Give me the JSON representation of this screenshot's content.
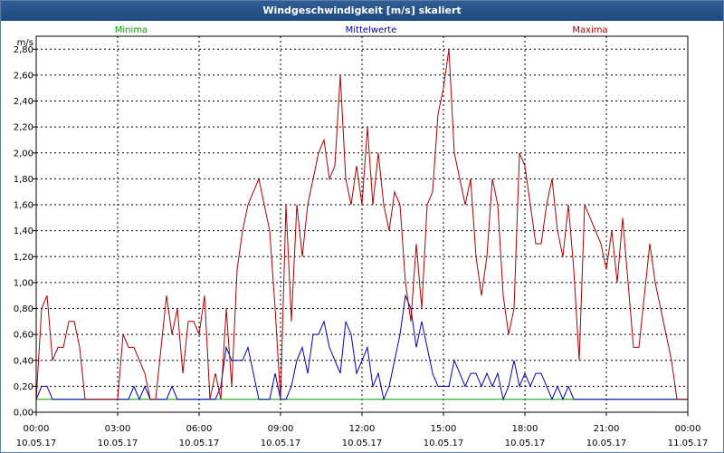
{
  "window": {
    "title": "Windgeschwindigkeit [m/s] skaliert"
  },
  "chart_data": {
    "type": "line",
    "title": "Windgeschwindigkeit [m/s] skaliert",
    "ylabel": "m/s",
    "ylim": [
      0,
      2.9
    ],
    "xlim": [
      0,
      24
    ],
    "grid": true,
    "y_ticks": [
      {
        "value": 0.0,
        "label": "0,00"
      },
      {
        "value": 0.2,
        "label": "0,20"
      },
      {
        "value": 0.4,
        "label": "0,40"
      },
      {
        "value": 0.6,
        "label": "0,60"
      },
      {
        "value": 0.8,
        "label": "0,80"
      },
      {
        "value": 1.0,
        "label": "1,00"
      },
      {
        "value": 1.2,
        "label": "1,20"
      },
      {
        "value": 1.4,
        "label": "1,40"
      },
      {
        "value": 1.6,
        "label": "1,60"
      },
      {
        "value": 1.8,
        "label": "1,80"
      },
      {
        "value": 2.0,
        "label": "2,00"
      },
      {
        "value": 2.2,
        "label": "2,20"
      },
      {
        "value": 2.4,
        "label": "2,40"
      },
      {
        "value": 2.6,
        "label": "2,60"
      },
      {
        "value": 2.8,
        "label": "2,80"
      }
    ],
    "x_ticks": [
      {
        "value": 0,
        "time": "00:00",
        "date": "10.05.17"
      },
      {
        "value": 3,
        "time": "03:00",
        "date": "10.05.17"
      },
      {
        "value": 6,
        "time": "06:00",
        "date": "10.05.17"
      },
      {
        "value": 9,
        "time": "09:00",
        "date": "10.05.17"
      },
      {
        "value": 12,
        "time": "12:00",
        "date": "10.05.17"
      },
      {
        "value": 15,
        "time": "15:00",
        "date": "10.05.17"
      },
      {
        "value": 18,
        "time": "18:00",
        "date": "10.05.17"
      },
      {
        "value": 21,
        "time": "21:00",
        "date": "10.05.17"
      },
      {
        "value": 24,
        "time": "00:00",
        "date": "11.05.17"
      }
    ],
    "series": [
      {
        "name": "Minima",
        "color": "#00a000",
        "points": [
          [
            0,
            0.1
          ],
          [
            24,
            0.1
          ]
        ]
      },
      {
        "name": "Mittelwerte",
        "color": "#0000c0",
        "points": [
          [
            0.0,
            0.1
          ],
          [
            0.2,
            0.2
          ],
          [
            0.4,
            0.2
          ],
          [
            0.6,
            0.1
          ],
          [
            1.5,
            0.1
          ],
          [
            3.0,
            0.1
          ],
          [
            3.4,
            0.1
          ],
          [
            3.6,
            0.2
          ],
          [
            3.8,
            0.1
          ],
          [
            4.0,
            0.2
          ],
          [
            4.2,
            0.1
          ],
          [
            4.8,
            0.1
          ],
          [
            5.0,
            0.2
          ],
          [
            5.2,
            0.1
          ],
          [
            5.6,
            0.1
          ],
          [
            6.0,
            0.1
          ],
          [
            6.4,
            0.1
          ],
          [
            6.6,
            0.1
          ],
          [
            6.8,
            0.2
          ],
          [
            7.0,
            0.5
          ],
          [
            7.2,
            0.4
          ],
          [
            7.4,
            0.4
          ],
          [
            7.6,
            0.4
          ],
          [
            7.8,
            0.5
          ],
          [
            8.0,
            0.3
          ],
          [
            8.2,
            0.1
          ],
          [
            8.6,
            0.1
          ],
          [
            8.8,
            0.3
          ],
          [
            9.0,
            0.1
          ],
          [
            9.2,
            0.1
          ],
          [
            9.4,
            0.2
          ],
          [
            9.6,
            0.4
          ],
          [
            9.8,
            0.5
          ],
          [
            10.0,
            0.3
          ],
          [
            10.2,
            0.6
          ],
          [
            10.4,
            0.6
          ],
          [
            10.6,
            0.7
          ],
          [
            10.8,
            0.5
          ],
          [
            11.0,
            0.4
          ],
          [
            11.2,
            0.3
          ],
          [
            11.4,
            0.7
          ],
          [
            11.6,
            0.6
          ],
          [
            11.8,
            0.3
          ],
          [
            12.0,
            0.4
          ],
          [
            12.2,
            0.5
          ],
          [
            12.4,
            0.2
          ],
          [
            12.6,
            0.3
          ],
          [
            12.8,
            0.1
          ],
          [
            13.0,
            0.2
          ],
          [
            13.2,
            0.4
          ],
          [
            13.4,
            0.6
          ],
          [
            13.6,
            0.9
          ],
          [
            13.8,
            0.8
          ],
          [
            14.0,
            0.5
          ],
          [
            14.2,
            0.7
          ],
          [
            14.4,
            0.5
          ],
          [
            14.6,
            0.3
          ],
          [
            14.8,
            0.2
          ],
          [
            15.0,
            0.2
          ],
          [
            15.2,
            0.2
          ],
          [
            15.4,
            0.4
          ],
          [
            15.6,
            0.3
          ],
          [
            15.8,
            0.2
          ],
          [
            16.0,
            0.3
          ],
          [
            16.2,
            0.3
          ],
          [
            16.4,
            0.2
          ],
          [
            16.6,
            0.3
          ],
          [
            16.8,
            0.2
          ],
          [
            17.0,
            0.3
          ],
          [
            17.2,
            0.1
          ],
          [
            17.4,
            0.2
          ],
          [
            17.6,
            0.4
          ],
          [
            17.8,
            0.2
          ],
          [
            18.0,
            0.3
          ],
          [
            18.2,
            0.2
          ],
          [
            18.4,
            0.3
          ],
          [
            18.6,
            0.3
          ],
          [
            18.8,
            0.2
          ],
          [
            19.0,
            0.1
          ],
          [
            19.2,
            0.2
          ],
          [
            19.4,
            0.1
          ],
          [
            19.6,
            0.2
          ],
          [
            19.8,
            0.1
          ],
          [
            20.0,
            0.1
          ],
          [
            24.0,
            0.1
          ]
        ]
      },
      {
        "name": "Maxima",
        "color": "#b00000",
        "points": [
          [
            0.0,
            0.1
          ],
          [
            0.2,
            0.8
          ],
          [
            0.4,
            0.9
          ],
          [
            0.6,
            0.4
          ],
          [
            0.8,
            0.5
          ],
          [
            1.0,
            0.5
          ],
          [
            1.2,
            0.7
          ],
          [
            1.4,
            0.7
          ],
          [
            1.6,
            0.5
          ],
          [
            1.8,
            0.1
          ],
          [
            2.4,
            0.1
          ],
          [
            2.6,
            0.1
          ],
          [
            2.8,
            0.1
          ],
          [
            3.0,
            0.1
          ],
          [
            3.2,
            0.6
          ],
          [
            3.4,
            0.5
          ],
          [
            3.6,
            0.5
          ],
          [
            3.8,
            0.4
          ],
          [
            4.0,
            0.3
          ],
          [
            4.2,
            0.1
          ],
          [
            4.4,
            0.1
          ],
          [
            4.6,
            0.5
          ],
          [
            4.8,
            0.9
          ],
          [
            5.0,
            0.6
          ],
          [
            5.2,
            0.8
          ],
          [
            5.4,
            0.3
          ],
          [
            5.6,
            0.7
          ],
          [
            5.8,
            0.7
          ],
          [
            6.0,
            0.6
          ],
          [
            6.2,
            0.9
          ],
          [
            6.4,
            0.1
          ],
          [
            6.6,
            0.3
          ],
          [
            6.8,
            0.1
          ],
          [
            7.0,
            0.8
          ],
          [
            7.2,
            0.2
          ],
          [
            7.4,
            1.1
          ],
          [
            7.6,
            1.4
          ],
          [
            7.8,
            1.6
          ],
          [
            8.0,
            1.7
          ],
          [
            8.2,
            1.8
          ],
          [
            8.4,
            1.6
          ],
          [
            8.6,
            1.4
          ],
          [
            8.8,
            0.8
          ],
          [
            9.0,
            0.1
          ],
          [
            9.2,
            1.6
          ],
          [
            9.4,
            0.7
          ],
          [
            9.6,
            1.6
          ],
          [
            9.8,
            1.2
          ],
          [
            10.0,
            1.6
          ],
          [
            10.2,
            1.8
          ],
          [
            10.4,
            2.0
          ],
          [
            10.6,
            2.1
          ],
          [
            10.8,
            1.8
          ],
          [
            11.0,
            1.9
          ],
          [
            11.2,
            2.6
          ],
          [
            11.4,
            1.8
          ],
          [
            11.6,
            1.6
          ],
          [
            11.8,
            1.9
          ],
          [
            12.0,
            1.6
          ],
          [
            12.2,
            2.2
          ],
          [
            12.4,
            1.6
          ],
          [
            12.6,
            2.0
          ],
          [
            12.8,
            1.6
          ],
          [
            13.0,
            1.4
          ],
          [
            13.2,
            1.7
          ],
          [
            13.4,
            1.6
          ],
          [
            13.6,
            1.0
          ],
          [
            13.8,
            0.7
          ],
          [
            14.0,
            1.3
          ],
          [
            14.2,
            0.8
          ],
          [
            14.4,
            1.6
          ],
          [
            14.6,
            1.7
          ],
          [
            14.8,
            2.3
          ],
          [
            15.0,
            2.5
          ],
          [
            15.2,
            2.8
          ],
          [
            15.4,
            2.0
          ],
          [
            15.6,
            1.8
          ],
          [
            15.8,
            1.6
          ],
          [
            16.0,
            1.8
          ],
          [
            16.2,
            1.2
          ],
          [
            16.4,
            0.9
          ],
          [
            16.6,
            1.2
          ],
          [
            16.8,
            1.8
          ],
          [
            17.0,
            1.6
          ],
          [
            17.2,
            0.9
          ],
          [
            17.4,
            0.6
          ],
          [
            17.6,
            0.8
          ],
          [
            17.8,
            2.0
          ],
          [
            18.0,
            1.9
          ],
          [
            18.2,
            1.6
          ],
          [
            18.4,
            1.3
          ],
          [
            18.6,
            1.3
          ],
          [
            18.8,
            1.6
          ],
          [
            19.0,
            1.8
          ],
          [
            19.2,
            1.4
          ],
          [
            19.4,
            1.2
          ],
          [
            19.6,
            1.6
          ],
          [
            19.8,
            1.1
          ],
          [
            20.0,
            0.4
          ],
          [
            20.2,
            1.6
          ],
          [
            20.4,
            1.5
          ],
          [
            20.6,
            1.4
          ],
          [
            20.8,
            1.3
          ],
          [
            21.0,
            1.1
          ],
          [
            21.2,
            1.4
          ],
          [
            21.4,
            1.0
          ],
          [
            21.6,
            1.5
          ],
          [
            21.8,
            1.0
          ],
          [
            22.0,
            0.5
          ],
          [
            22.2,
            0.5
          ],
          [
            22.4,
            0.9
          ],
          [
            22.6,
            1.3
          ],
          [
            22.8,
            1.0
          ],
          [
            23.0,
            0.8
          ],
          [
            23.2,
            0.6
          ],
          [
            23.4,
            0.4
          ],
          [
            23.6,
            0.1
          ],
          [
            24.0,
            0.1
          ]
        ]
      }
    ]
  }
}
